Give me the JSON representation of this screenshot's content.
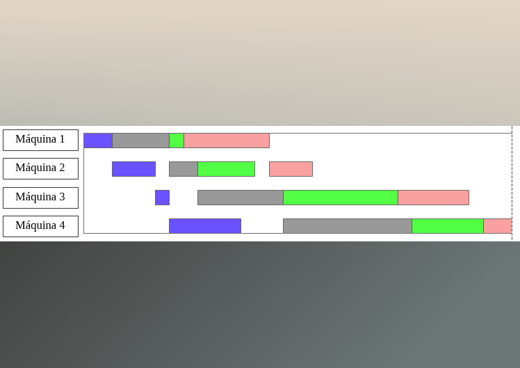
{
  "chart_data": {
    "type": "gantt",
    "categories": [
      "Máquina 1",
      "Máquina 2",
      "Máquina 3",
      "Máquina 4"
    ],
    "series": [
      {
        "color": "#6b52ff",
        "values": [
          [
            0,
            2
          ],
          [
            2,
            3
          ],
          [
            5,
            1
          ],
          [
            6,
            5
          ]
        ]
      },
      {
        "color": "#999999",
        "values": [
          [
            2,
            4
          ],
          [
            6,
            2
          ],
          [
            8,
            6
          ],
          [
            14,
            9
          ]
        ]
      },
      {
        "color": "#52ff45",
        "values": [
          [
            6,
            1
          ],
          [
            8,
            4
          ],
          [
            14,
            8
          ],
          [
            23,
            5
          ]
        ]
      },
      {
        "color": "#f9a0a0",
        "values": [
          [
            7,
            6
          ],
          [
            13,
            3
          ],
          [
            22,
            5
          ],
          [
            28,
            2
          ]
        ]
      }
    ],
    "xlim": [
      0,
      30
    ],
    "tick_labels": false
  }
}
